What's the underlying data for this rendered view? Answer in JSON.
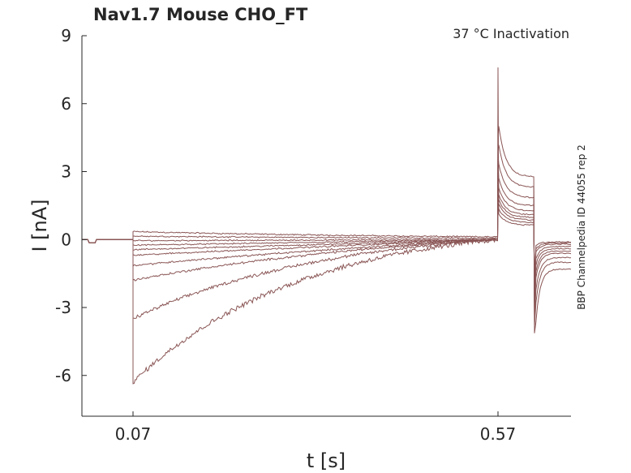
{
  "chart_data": {
    "type": "line",
    "title": "Nav1.7  Mouse  CHO_FT",
    "annotation": "37 °C  Inactivation",
    "side_label": "BBP Channelpedia ID 44055 rep 2",
    "xlabel": "t [s]",
    "ylabel": "I [nA]",
    "xlim": [
      0.0,
      0.67
    ],
    "ylim": [
      -7.8,
      9
    ],
    "xticks": [
      0.07,
      0.57
    ],
    "xtick_labels": [
      "0.07",
      "0.57"
    ],
    "yticks": [
      9,
      6,
      3,
      0,
      -3,
      -6
    ],
    "ytick_labels": [
      "9",
      "6",
      "3",
      "0",
      "-3",
      "-6"
    ],
    "line_color": "#8a5555",
    "grid": false,
    "protocol": {
      "holding_current": 0.0,
      "pulse1_start": 0.07,
      "pulse1_end": 0.57,
      "pulse2_end": 0.62,
      "final_spike_nA": 7.6,
      "post_spike_nA": -4.4
    },
    "series": [
      {
        "start": 0.35,
        "decay_tau": 0.45,
        "step_current": 0.55,
        "tail": -0.1
      },
      {
        "start": 0.15,
        "decay_tau": 0.5,
        "step_current": 0.65,
        "tail": -0.15
      },
      {
        "start": -0.05,
        "decay_tau": 0.5,
        "step_current": 0.75,
        "tail": -0.2
      },
      {
        "start": -0.25,
        "decay_tau": 0.45,
        "step_current": 0.85,
        "tail": -0.3
      },
      {
        "start": -0.45,
        "decay_tau": 0.45,
        "step_current": 0.95,
        "tail": -0.4
      },
      {
        "start": -0.7,
        "decay_tau": 0.4,
        "step_current": 1.1,
        "tail": -0.5
      },
      {
        "start": -1.15,
        "decay_tau": 0.35,
        "step_current": 1.3,
        "tail": -0.6
      },
      {
        "start": -1.8,
        "decay_tau": 0.28,
        "step_current": 1.6,
        "tail": -0.8
      },
      {
        "start": -3.5,
        "decay_tau": 0.22,
        "step_current": 2.0,
        "tail": -1.0
      },
      {
        "start": -6.3,
        "decay_tau": 0.2,
        "step_current": 2.4,
        "tail": -1.3
      }
    ]
  }
}
